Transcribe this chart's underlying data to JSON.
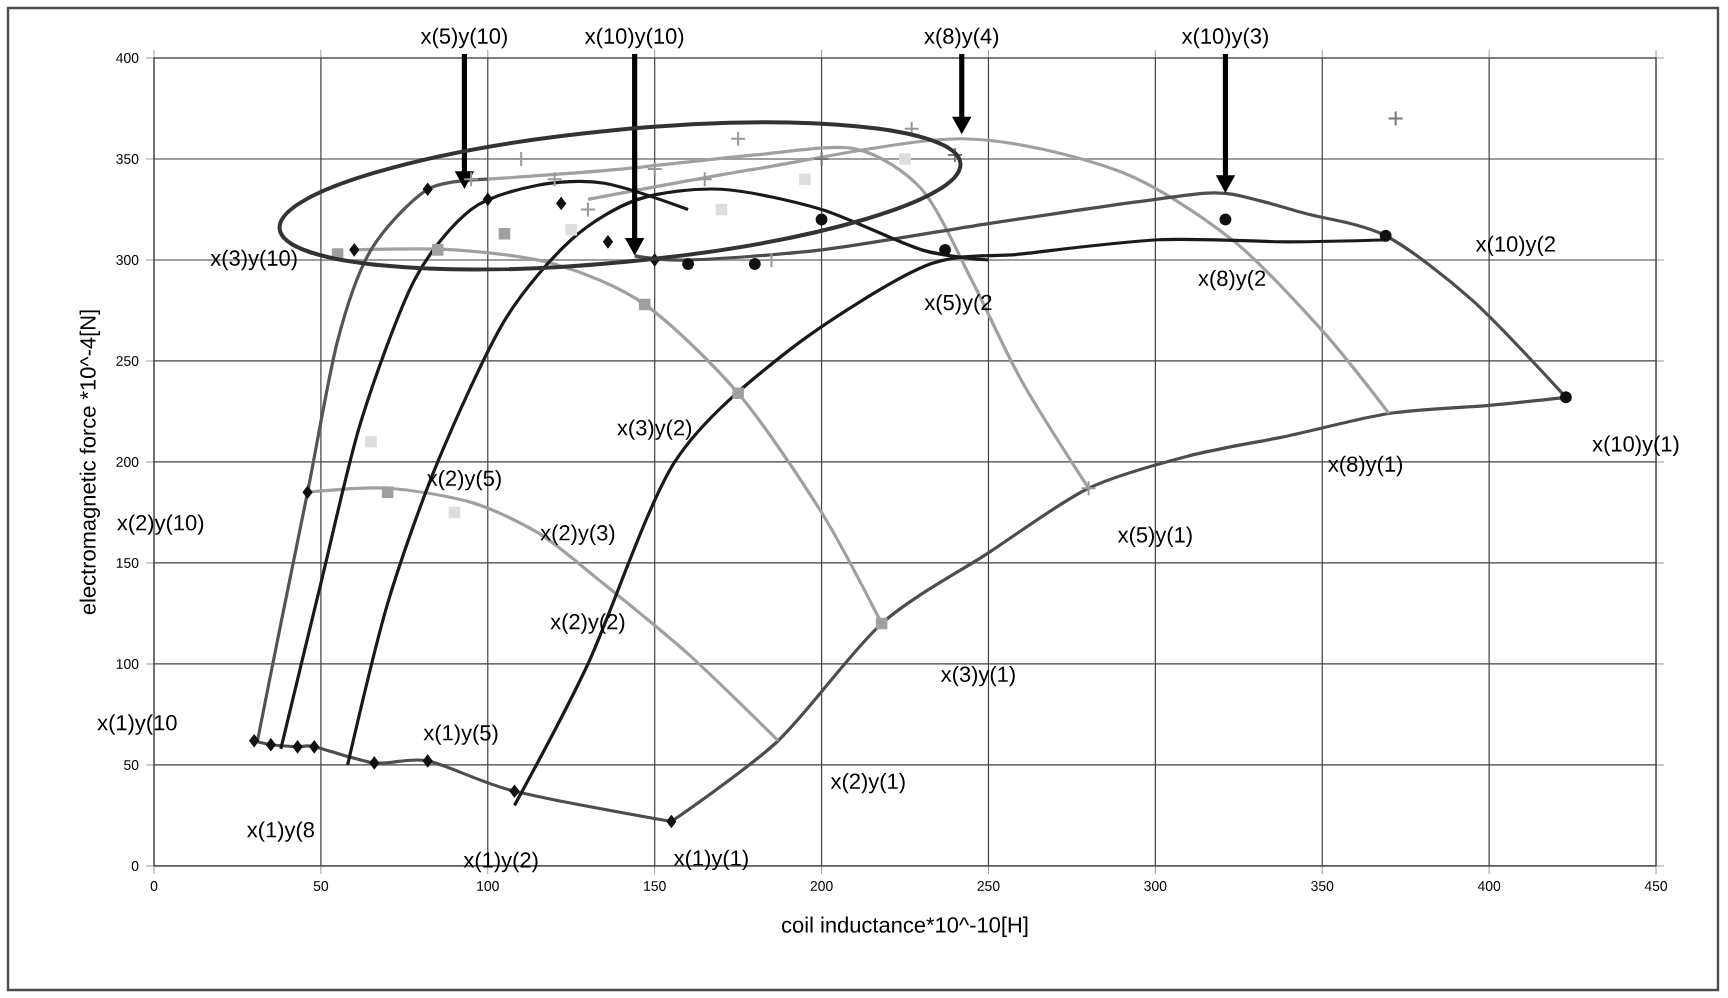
{
  "chart_data": {
    "type": "line",
    "xlabel": "coil inductance*10^-10[H]",
    "ylabel": "electromagnetic force *10^-4[N]",
    "xlim": [
      0,
      450
    ],
    "ylim": [
      0,
      400
    ],
    "xticks": [
      0,
      50,
      100,
      150,
      200,
      250,
      300,
      350,
      400,
      450
    ],
    "yticks": [
      0,
      50,
      100,
      150,
      200,
      250,
      300,
      350,
      400
    ],
    "grid": true,
    "series": [
      {
        "color": "#4d4d4d",
        "x": [
          155,
          187,
          218,
          250,
          280,
          310,
          340,
          370,
          400,
          423
        ],
        "values": [
          22,
          62,
          120,
          155,
          187,
          203,
          213,
          224,
          228,
          232
        ]
      },
      {
        "color": "#4d4d4d",
        "x": [
          30,
          35,
          43,
          48,
          66,
          82,
          108,
          155
        ],
        "values": [
          62,
          60,
          59,
          59,
          51,
          52,
          37,
          22
        ]
      },
      {
        "color": "#a0a0a0",
        "x": [
          46,
          70,
          95,
          115,
          133,
          160,
          187
        ],
        "values": [
          185,
          187,
          180,
          165,
          142,
          105,
          62
        ]
      },
      {
        "color": "#a0a0a0",
        "x": [
          60,
          90,
          120,
          147,
          175,
          200,
          218
        ],
        "values": [
          305,
          305,
          298,
          278,
          234,
          175,
          120
        ]
      },
      {
        "color": "#a0a0a0",
        "x": [
          100,
          140,
          180,
          210,
          230,
          245,
          260,
          280
        ],
        "values": [
          340,
          345,
          352,
          355,
          335,
          290,
          240,
          187
        ]
      },
      {
        "color": "#a0a0a0",
        "x": [
          130,
          180,
          242,
          289,
          323,
          350,
          370
        ],
        "values": [
          330,
          345,
          360,
          344,
          310,
          265,
          224
        ]
      },
      {
        "color": "#4d4d4d",
        "x": [
          144,
          160,
          200,
          250,
          300,
          321,
          345,
          369,
          395,
          423
        ],
        "values": [
          302,
          300,
          305,
          318,
          330,
          333,
          323,
          312,
          280,
          232
        ]
      },
      {
        "color": "#1a1a1a",
        "x": [
          108,
          130,
          156,
          190,
          231,
          260,
          301,
          340,
          370
        ],
        "values": [
          30,
          100,
          200,
          255,
          297,
          303,
          310,
          309,
          310
        ]
      },
      {
        "color": "#555555",
        "x": [
          31,
          38,
          46,
          55,
          65,
          82,
          100
        ],
        "values": [
          62,
          120,
          185,
          260,
          305,
          335,
          340
        ]
      },
      {
        "color": "#1a1a1a",
        "x": [
          38,
          50,
          62,
          78,
          95,
          115,
          135,
          160
        ],
        "values": [
          58,
          140,
          220,
          290,
          325,
          337,
          338,
          325
        ]
      },
      {
        "color": "#1a1a1a",
        "x": [
          58,
          70,
          85,
          105,
          125,
          145,
          170,
          200,
          230,
          250
        ],
        "values": [
          50,
          130,
          200,
          270,
          310,
          330,
          335,
          325,
          305,
          300
        ]
      },
      {
        "type": "scatter",
        "marker": "diamond",
        "color": "#111111",
        "x": [
          30,
          35,
          43,
          48,
          66,
          82,
          108,
          155,
          60,
          82,
          100,
          122,
          136,
          150,
          46
        ],
        "values": [
          62,
          60,
          59,
          59,
          51,
          52,
          37,
          22,
          305,
          335,
          330,
          328,
          309,
          300,
          185
        ]
      },
      {
        "type": "scatter",
        "marker": "square",
        "color": "#a0a0a0",
        "x": [
          55,
          85,
          105,
          147,
          175,
          218,
          70
        ],
        "values": [
          303,
          305,
          313,
          278,
          234,
          120,
          185
        ]
      },
      {
        "type": "scatter",
        "marker": "square",
        "color": "#dddddd",
        "x": [
          125,
          170,
          195,
          225,
          65,
          90
        ],
        "values": [
          315,
          325,
          340,
          350,
          210,
          175
        ]
      },
      {
        "type": "scatter",
        "marker": "cross",
        "color": "#999999",
        "x": [
          110,
          95,
          175,
          227,
          150,
          165,
          280,
          185,
          130,
          120
        ],
        "values": [
          350,
          340,
          360,
          365,
          345,
          340,
          187,
          300,
          325,
          340
        ]
      },
      {
        "type": "scatter",
        "marker": "cross",
        "color": "#777777",
        "x": [
          372,
          240,
          200
        ],
        "values": [
          370,
          352,
          350
        ]
      },
      {
        "type": "scatter",
        "marker": "circle",
        "color": "#111111",
        "x": [
          160,
          180,
          200,
          237,
          321,
          369,
          423
        ],
        "values": [
          298,
          298,
          320,
          305,
          320,
          312,
          232
        ]
      }
    ],
    "annotations": [
      {
        "text": "x(5)y(10)",
        "x": 93,
        "y": 335
      },
      {
        "text": "x(10)y(10)",
        "x": 144,
        "y": 302
      },
      {
        "text": "x(8)y(4)",
        "x": 242,
        "y": 362
      },
      {
        "text": "x(10)y(3)",
        "x": 321,
        "y": 333
      },
      "x(3)y(10)",
      "x(10)y(2",
      "x(5)y(2",
      "x(8)y(2",
      "x(3)y(2)",
      "x(10)y(1)",
      "x(8)y(1)",
      "x(5)y(1)",
      "x(2)y(5)",
      "x(2)y(3)",
      "x(2)y(10)",
      "x(1)y(10",
      "x(1)y(8",
      "x(1)y(5)",
      "x(1)y(2)",
      "x(1)y(1)",
      "x(2)y(1)",
      "x(3)y(1)",
      "x(2)y(2)"
    ]
  }
}
